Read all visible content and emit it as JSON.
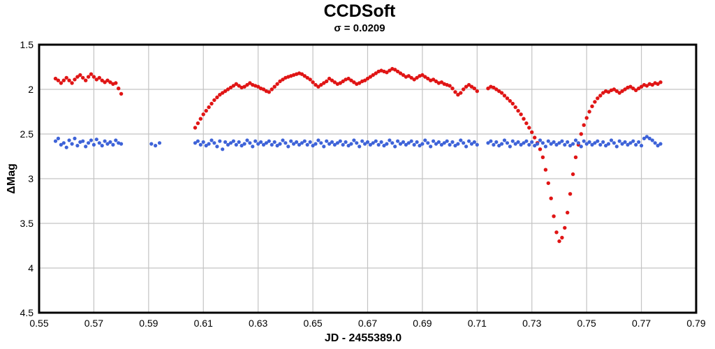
{
  "chart_data": {
    "type": "scatter",
    "title": "CCDSoft",
    "subtitle": "σ = 0.0209",
    "xlabel": "JD - 2455389.0",
    "ylabel": "ΔMag",
    "xlim": [
      0.55,
      0.79
    ],
    "ylim": [
      1.5,
      4.5
    ],
    "y_direction": "down",
    "grid": true,
    "x_ticks": [
      "0.55",
      "0.57",
      "0.59",
      "0.61",
      "0.63",
      "0.65",
      "0.67",
      "0.69",
      "0.71",
      "0.73",
      "0.75",
      "0.77",
      "0.79"
    ],
    "y_ticks": [
      "1.5",
      "2",
      "2.5",
      "3",
      "3.5",
      "4",
      "4.5"
    ],
    "colors": {
      "red_series": "#e01515",
      "blue_series": "#3e63d8",
      "grid": "#c3c3c3",
      "frame": "#000000"
    },
    "series": [
      {
        "name": "red-series",
        "color": "#e01515",
        "marker": "circle",
        "marker_radius": 2.7,
        "segments": [
          {
            "x_start": 0.556,
            "x_step": 0.001,
            "mag": [
              1.88,
              1.9,
              1.93,
              1.9,
              1.87,
              1.9,
              1.93,
              1.89,
              1.86,
              1.84,
              1.87,
              1.9,
              1.86,
              1.83,
              1.86,
              1.89,
              1.87,
              1.9,
              1.92,
              1.9,
              1.92,
              1.94,
              1.93,
              1.99,
              2.05
            ]
          },
          {
            "x_start": 0.607,
            "x_step": 0.001,
            "mag": [
              2.43,
              2.38,
              2.33,
              2.28,
              2.24,
              2.2,
              2.16,
              2.12,
              2.09,
              2.06,
              2.04,
              2.02,
              2.0,
              1.98,
              1.96,
              1.94,
              1.96,
              1.98,
              1.97,
              1.95,
              1.93,
              1.95,
              1.96,
              1.97,
              1.99,
              2.0,
              2.02,
              2.03,
              2.0,
              1.97,
              1.94,
              1.91,
              1.89,
              1.87,
              1.86,
              1.85,
              1.84,
              1.83,
              1.82,
              1.83,
              1.85,
              1.87,
              1.89,
              1.92,
              1.95,
              1.97,
              1.95,
              1.93,
              1.91,
              1.88,
              1.9,
              1.92,
              1.94,
              1.93,
              1.91,
              1.89,
              1.88,
              1.9,
              1.92,
              1.94,
              1.93,
              1.91,
              1.9,
              1.88,
              1.86,
              1.84,
              1.82,
              1.8,
              1.79,
              1.8,
              1.81,
              1.79,
              1.77,
              1.78,
              1.8,
              1.82,
              1.84,
              1.86,
              1.85,
              1.87,
              1.89,
              1.87,
              1.85,
              1.84,
              1.86,
              1.88,
              1.9,
              1.89,
              1.91,
              1.93,
              1.92,
              1.94,
              1.95,
              1.96,
              1.99,
              2.03,
              2.06,
              2.04,
              2.0,
              1.97,
              1.95,
              1.97,
              1.99,
              2.02
            ]
          },
          {
            "x_start": 0.714,
            "x_step": 0.001,
            "mag": [
              1.99,
              1.97,
              1.98,
              2.0,
              2.02,
              2.04,
              2.07,
              2.1,
              2.13,
              2.16,
              2.2,
              2.24,
              2.28,
              2.33,
              2.38,
              2.43,
              2.48,
              2.54,
              2.6,
              2.67,
              2.76,
              2.9,
              3.05,
              3.22,
              3.42,
              3.6,
              3.7,
              3.66,
              3.55,
              3.38,
              3.17,
              2.95,
              2.76,
              2.62,
              2.5,
              2.4,
              2.32,
              2.25,
              2.19,
              2.14,
              2.1,
              2.07,
              2.04,
              2.02,
              2.03,
              2.01,
              2.0,
              2.02,
              2.04,
              2.02,
              2.0,
              1.98,
              1.97,
              1.99,
              2.01,
              1.99,
              1.97,
              1.95,
              1.96,
              1.94,
              1.95,
              1.93,
              1.94,
              1.92
            ]
          }
        ]
      },
      {
        "name": "blue-series",
        "color": "#3e63d8",
        "marker": "circle",
        "marker_radius": 2.6,
        "segments": [
          {
            "x_start": 0.556,
            "x_step": 0.001,
            "mag": [
              2.58,
              2.55,
              2.62,
              2.6,
              2.65,
              2.57,
              2.61,
              2.55,
              2.63,
              2.59,
              2.58,
              2.64,
              2.6,
              2.57,
              2.62,
              2.56,
              2.6,
              2.63,
              2.58,
              2.61,
              2.59,
              2.62,
              2.57,
              2.6,
              2.61
            ]
          },
          {
            "x_start": 0.591,
            "x_step": 0.0015,
            "mag": [
              2.61,
              2.63,
              2.6
            ]
          },
          {
            "x_start": 0.607,
            "x_step": 0.001,
            "mag": [
              2.6,
              2.58,
              2.62,
              2.59,
              2.63,
              2.61,
              2.57,
              2.6,
              2.64,
              2.58,
              2.67,
              2.59,
              2.62,
              2.6,
              2.58,
              2.62,
              2.59,
              2.63,
              2.61,
              2.57,
              2.6,
              2.64,
              2.58,
              2.61,
              2.59,
              2.62,
              2.6,
              2.58,
              2.62,
              2.59,
              2.63,
              2.61,
              2.57,
              2.6,
              2.64,
              2.58,
              2.61,
              2.59,
              2.62,
              2.6,
              2.58,
              2.62,
              2.59,
              2.63,
              2.61,
              2.57,
              2.6,
              2.64,
              2.58,
              2.61,
              2.59,
              2.62,
              2.6,
              2.58,
              2.62,
              2.59,
              2.63,
              2.61,
              2.57,
              2.6,
              2.64,
              2.58,
              2.61,
              2.59,
              2.62,
              2.6,
              2.58,
              2.62,
              2.59,
              2.63,
              2.61,
              2.57,
              2.6,
              2.64,
              2.58,
              2.61,
              2.59,
              2.62,
              2.6,
              2.58,
              2.62,
              2.59,
              2.63,
              2.61,
              2.57,
              2.6,
              2.64,
              2.58,
              2.61,
              2.59,
              2.62,
              2.6,
              2.58,
              2.62,
              2.59,
              2.63,
              2.61,
              2.57,
              2.6,
              2.64,
              2.58,
              2.61,
              2.59,
              2.62
            ]
          },
          {
            "x_start": 0.714,
            "x_step": 0.001,
            "mag": [
              2.6,
              2.58,
              2.62,
              2.59,
              2.63,
              2.61,
              2.57,
              2.6,
              2.64,
              2.58,
              2.61,
              2.59,
              2.62,
              2.6,
              2.58,
              2.62,
              2.59,
              2.63,
              2.61,
              2.57,
              2.6,
              2.64,
              2.58,
              2.61,
              2.59,
              2.62,
              2.6,
              2.58,
              2.62,
              2.59,
              2.63,
              2.61,
              2.57,
              2.6,
              2.64,
              2.58,
              2.61,
              2.59,
              2.62,
              2.6,
              2.58,
              2.62,
              2.59,
              2.63,
              2.61,
              2.57,
              2.6,
              2.64,
              2.58,
              2.61,
              2.59,
              2.62,
              2.6,
              2.58,
              2.62,
              2.59,
              2.63,
              2.55,
              2.53,
              2.55,
              2.57,
              2.6,
              2.63,
              2.61
            ]
          }
        ]
      }
    ]
  }
}
